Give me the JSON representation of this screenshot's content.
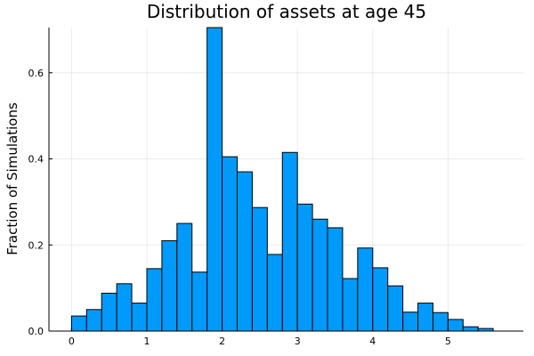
{
  "chart_data": {
    "type": "bar",
    "title": "Distribution of assets at age 45",
    "xlabel": "",
    "ylabel": "Fraction of Simulations",
    "xlim": [
      -0.3,
      6.0
    ],
    "ylim": [
      0,
      0.705
    ],
    "xticks": [
      0,
      1,
      2,
      3,
      4,
      5
    ],
    "yticks": [
      0.0,
      0.2,
      0.4,
      0.6
    ],
    "ytick_labels": [
      "0.0",
      "0.2",
      "0.4",
      "0.6"
    ],
    "grid": true,
    "bar_color": "#009AFA",
    "bin_width": 0.2,
    "bin_starts": [
      0.0,
      0.2,
      0.4,
      0.6,
      0.8,
      1.0,
      1.2,
      1.4,
      1.6,
      1.8,
      2.0,
      2.2,
      2.4,
      2.6,
      2.8,
      3.0,
      3.2,
      3.4,
      3.6,
      3.8,
      4.0,
      4.2,
      4.4,
      4.6,
      4.8,
      5.0,
      5.2,
      5.4
    ],
    "values": [
      0.035,
      0.05,
      0.088,
      0.11,
      0.065,
      0.145,
      0.21,
      0.25,
      0.137,
      0.705,
      0.405,
      0.37,
      0.287,
      0.178,
      0.415,
      0.295,
      0.26,
      0.24,
      0.122,
      0.193,
      0.147,
      0.105,
      0.044,
      0.065,
      0.043,
      0.027,
      0.01,
      0.006
    ]
  }
}
